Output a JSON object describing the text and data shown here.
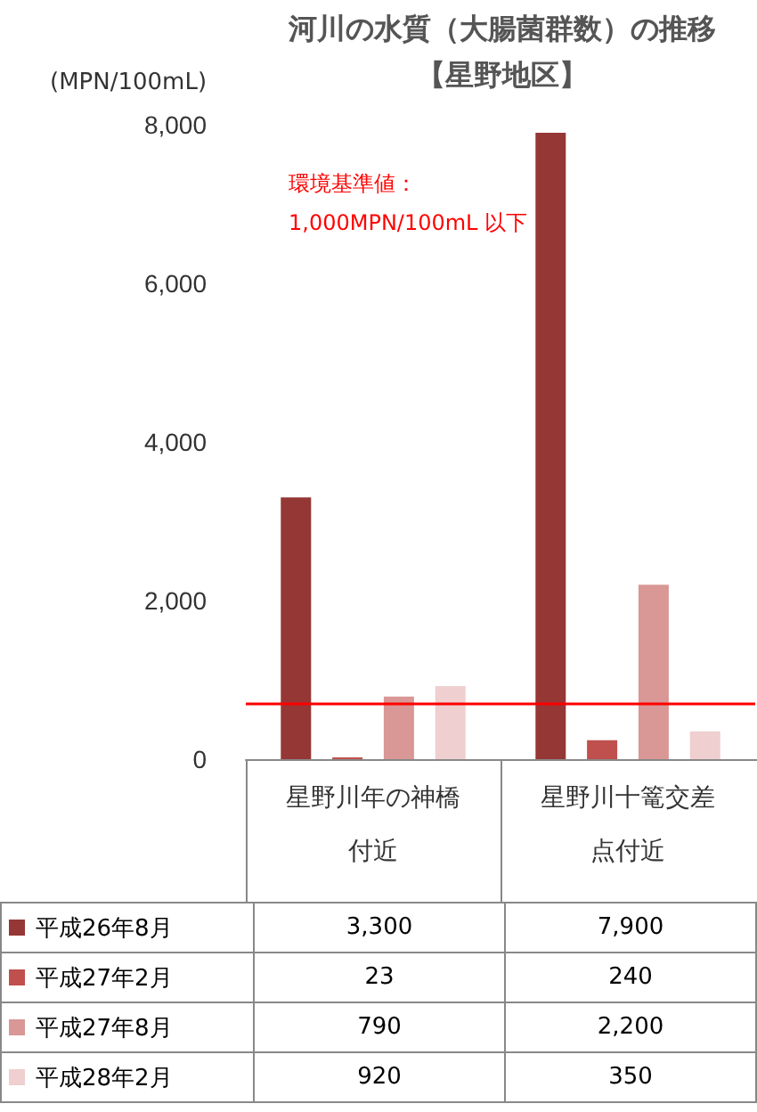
{
  "chart_data": {
    "type": "bar",
    "title": "河川の水質（大腸菌群数）の推移",
    "subtitle": "【星野地区】",
    "ylabel": "(MPN/100mL)",
    "categories": [
      "星野川年の神橋付近",
      "星野川十篭交差点付近"
    ],
    "series": [
      {
        "name": "平成26年8月",
        "color": "#953735",
        "values": [
          3300,
          7900
        ],
        "value_labels": [
          "3,300",
          "7,900"
        ]
      },
      {
        "name": "平成27年2月",
        "color": "#c0504d",
        "values": [
          23,
          240
        ],
        "value_labels": [
          "23",
          "240"
        ]
      },
      {
        "name": "平成27年8月",
        "color": "#d99795",
        "values": [
          790,
          2200
        ],
        "value_labels": [
          "790",
          "2,200"
        ]
      },
      {
        "name": "平成28年2月",
        "color": "#efcfcf",
        "values": [
          920,
          350
        ],
        "value_labels": [
          "920",
          "350"
        ]
      }
    ],
    "ylim": [
      0,
      8000
    ],
    "yticks": [
      0,
      {
        "value": 2000,
        "label": "2,000"
      },
      {
        "value": 4000,
        "label": "4,000"
      },
      {
        "value": 6000,
        "label": "6,000"
      },
      {
        "value": 8000,
        "label": "8,000"
      }
    ],
    "ref_lines": [
      {
        "axis": "y",
        "value": 700,
        "label": "環境基準値：\n1,000MPN/100mL 以下",
        "color": "#ff0000"
      }
    ],
    "grid": false,
    "legend": "bottom"
  }
}
